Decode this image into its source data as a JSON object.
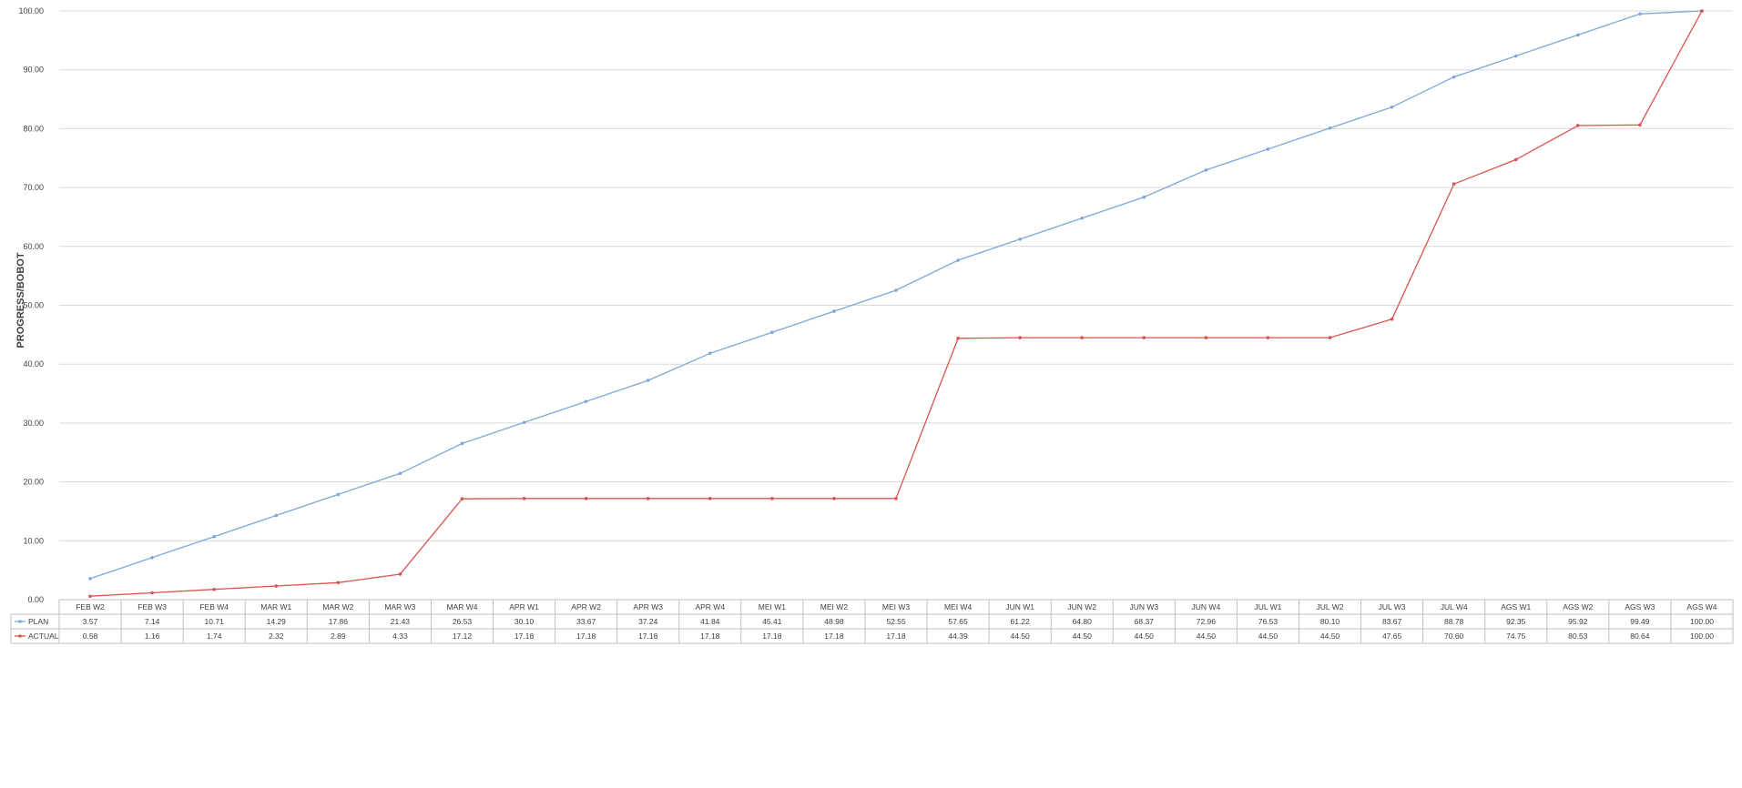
{
  "chart_data": {
    "type": "line",
    "ylabel": "PROGRESS/BOBOT",
    "ylim": [
      0,
      100
    ],
    "y_ticks": [
      "0.00",
      "10.00",
      "20.00",
      "30.00",
      "40.00",
      "50.00",
      "60.00",
      "70.00",
      "80.00",
      "90.00",
      "100.00"
    ],
    "grid": true,
    "legend": "data-table-bottom",
    "categories": [
      "FEB W2",
      "FEB W3",
      "FEB W4",
      "MAR W1",
      "MAR W2",
      "MAR W3",
      "MAR W4",
      "APR W1",
      "APR W2",
      "APR W3",
      "APR W4",
      "MEI W1",
      "MEI W2",
      "MEI W3",
      "MEI W4",
      "JUN W1",
      "JUN W2",
      "JUN W3",
      "JUN W4",
      "JUL W1",
      "JUL W2",
      "JUL W3",
      "JUL W4",
      "AGS W1",
      "AGS W2",
      "AGS W3",
      "AGS W4"
    ],
    "series": [
      {
        "name": "PLAN",
        "color": "#7da7d9",
        "values": [
          3.57,
          7.14,
          10.71,
          14.29,
          17.86,
          21.43,
          26.53,
          30.1,
          33.67,
          37.24,
          41.84,
          45.41,
          48.98,
          52.55,
          57.65,
          61.22,
          64.8,
          68.37,
          72.96,
          76.53,
          80.1,
          83.67,
          88.78,
          92.35,
          95.92,
          99.49,
          100.0
        ],
        "labels": [
          "3.57",
          "7.14",
          "10.71",
          "14.29",
          "17.86",
          "21.43",
          "26.53",
          "30.10",
          "33.67",
          "37.24",
          "41.84",
          "45.41",
          "48.98",
          "52.55",
          "57.65",
          "61.22",
          "64.80",
          "68.37",
          "72.96",
          "76.53",
          "80.10",
          "83.67",
          "88.78",
          "92.35",
          "95.92",
          "99.49",
          "100.00"
        ]
      },
      {
        "name": "ACTUAL",
        "color": "#d9534f",
        "values": [
          0.58,
          1.16,
          1.74,
          2.32,
          2.89,
          4.33,
          17.12,
          17.18,
          17.18,
          17.18,
          17.18,
          17.18,
          17.18,
          17.18,
          44.39,
          44.5,
          44.5,
          44.5,
          44.5,
          44.5,
          44.5,
          47.65,
          70.6,
          74.75,
          80.53,
          80.64,
          100.0
        ],
        "labels": [
          "0.58",
          "1.16",
          "1.74",
          "2.32",
          "2.89",
          "4.33",
          "17.12",
          "17.18",
          "17.18",
          "17.18",
          "17.18",
          "17.18",
          "17.18",
          "17.18",
          "44.39",
          "44.50",
          "44.50",
          "44.50",
          "44.50",
          "44.50",
          "44.50",
          "47.65",
          "70.60",
          "74.75",
          "80.53",
          "80.64",
          "100.00"
        ]
      }
    ]
  }
}
